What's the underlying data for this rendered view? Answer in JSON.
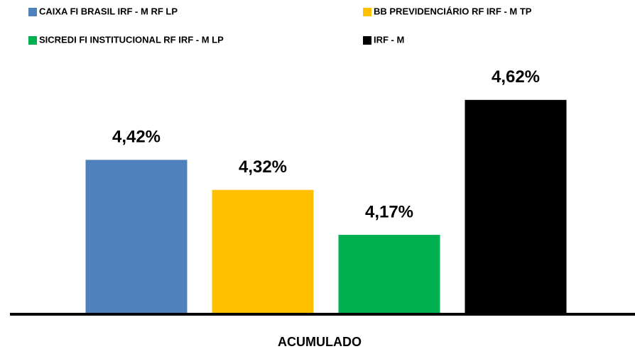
{
  "chart_data": {
    "type": "bar",
    "categories": [
      "ACUMULADO"
    ],
    "series": [
      {
        "name": "CAIXA FI BRASIL IRF - M RF LP",
        "color": "#4f81bd",
        "values": [
          4.42
        ],
        "value_labels": [
          "4,42%"
        ]
      },
      {
        "name": "BB PREVIDENCIÁRIO RF IRF - M TP",
        "color": "#ffc000",
        "values": [
          4.32
        ],
        "value_labels": [
          "4,32%"
        ]
      },
      {
        "name": "SICREDI FI INSTITUCIONAL RF IRF - M LP",
        "color": "#00b050",
        "values": [
          4.17
        ],
        "value_labels": [
          "4,17%"
        ]
      },
      {
        "name": "IRF - M",
        "color": "#000000",
        "values": [
          4.62
        ],
        "value_labels": [
          "4,62%"
        ]
      }
    ],
    "ylim": [
      3.91,
      4.7
    ]
  }
}
